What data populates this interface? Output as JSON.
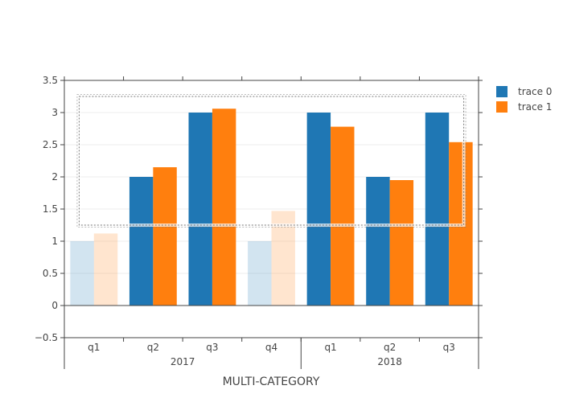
{
  "chart_data": {
    "type": "bar",
    "xlabel": "MULTI-CATEGORY",
    "ylim": [
      -0.5,
      3.5
    ],
    "y_ticks": [
      "−0.5",
      "0",
      "0.5",
      "1",
      "1.5",
      "2",
      "2.5",
      "3",
      "3.5"
    ],
    "y_tick_values": [
      -0.5,
      0,
      0.5,
      1,
      1.5,
      2,
      2.5,
      3,
      3.5
    ],
    "categories": [
      "q1",
      "q2",
      "q3",
      "q4",
      "q1",
      "q2",
      "q3"
    ],
    "groups": [
      {
        "label": "2017",
        "count": 4
      },
      {
        "label": "2018",
        "count": 3
      }
    ],
    "series": [
      {
        "name": "trace 0",
        "color": "#1f77b4",
        "values": [
          1,
          2,
          3,
          1,
          3,
          2,
          3
        ]
      },
      {
        "name": "trace 1",
        "color": "#ff7f0e",
        "values": [
          1.12,
          2.15,
          3.06,
          1.47,
          2.78,
          1.95,
          2.54
        ]
      }
    ],
    "unselected_categories": [
      0,
      3
    ],
    "selection_box": {
      "y_range": [
        1.25,
        3.25
      ],
      "x_range_categories": [
        0.25,
        6.75
      ]
    },
    "legend_position": "top-right",
    "grid": true
  }
}
